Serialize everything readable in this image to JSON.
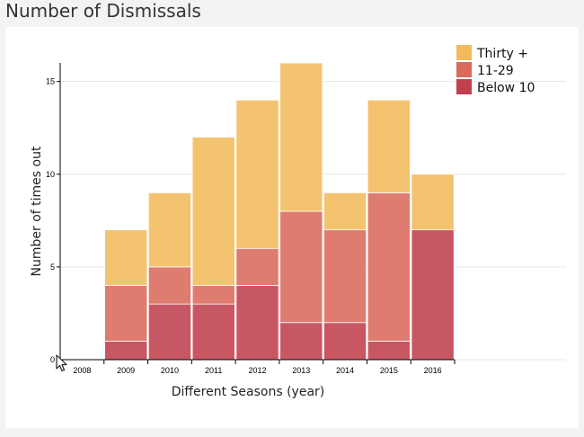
{
  "page": {
    "title": "Number of Dismissals"
  },
  "colors": {
    "thirty_plus": "#f3bb5b",
    "eleven_29": "#d96a5c",
    "below_10": "#c0404f",
    "background": "#f3f3f3",
    "panel": "#ffffff"
  },
  "chart_data": {
    "type": "bar",
    "stacked": true,
    "title": "",
    "xlabel": "Different Seasons (year)",
    "ylabel": "Number of times out",
    "categories": [
      "2008",
      "2009",
      "2010",
      "2011",
      "2012",
      "2013",
      "2014",
      "2015",
      "2016"
    ],
    "series": [
      {
        "name": "Below 10",
        "color": "#c0404f",
        "values": [
          0,
          1,
          3,
          3,
          4,
          2,
          2,
          1,
          7
        ]
      },
      {
        "name": "11-29",
        "color": "#d96a5c",
        "values": [
          0,
          3,
          2,
          1,
          2,
          6,
          5,
          8,
          0
        ]
      },
      {
        "name": "Thirty +",
        "color": "#f3bb5b",
        "values": [
          0,
          3,
          4,
          8,
          8,
          8,
          2,
          5,
          3
        ]
      }
    ],
    "legend_order": [
      "Thirty +",
      "11-29",
      "Below 10"
    ],
    "yticks": [
      0,
      5,
      10,
      15
    ],
    "ylim": [
      0,
      16
    ],
    "grid": true,
    "legend_position": "top-right"
  }
}
